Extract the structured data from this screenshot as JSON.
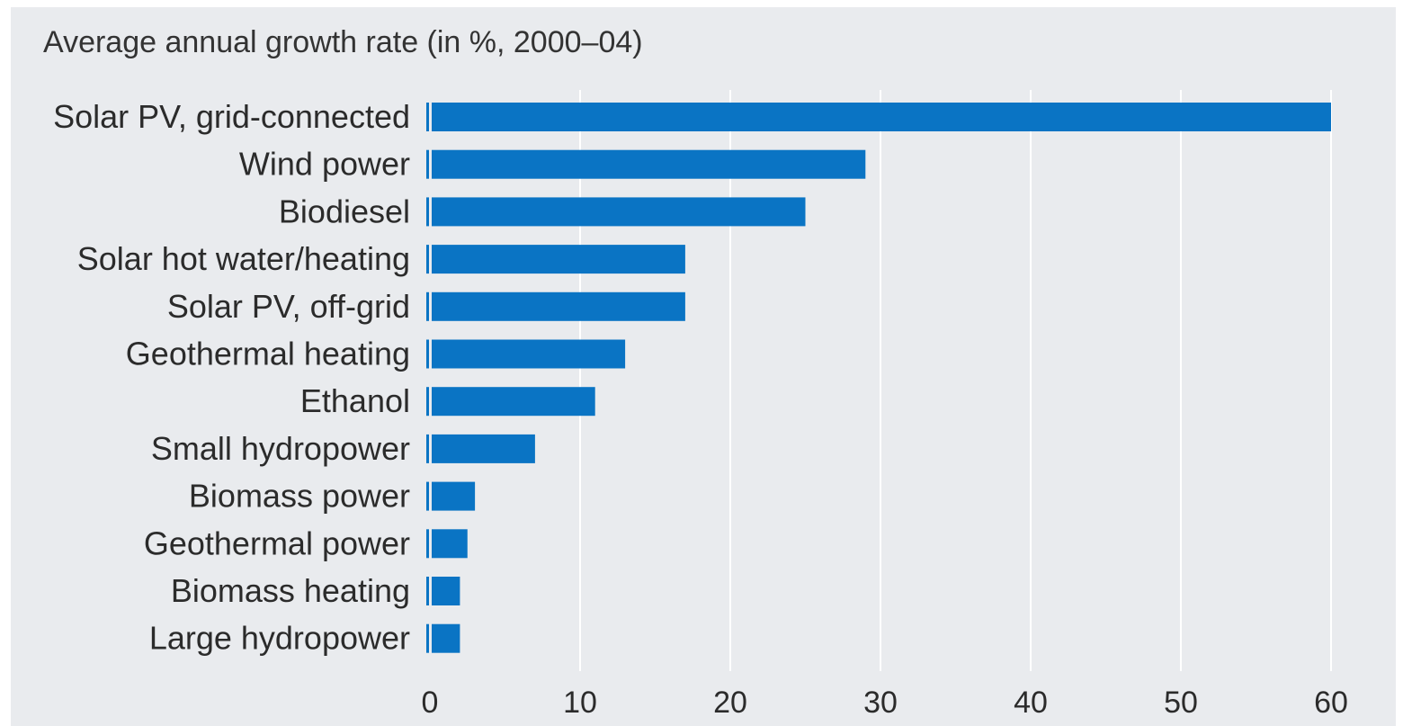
{
  "chart_data": {
    "type": "bar",
    "orientation": "horizontal",
    "title": "Average annual growth rate (in %, 2000–04)",
    "xlabel": "",
    "ylabel": "",
    "categories": [
      "Solar PV, grid-connected",
      "Wind power",
      "Biodiesel",
      "Solar hot water/heating",
      "Solar PV, off-grid",
      "Geothermal heating",
      "Ethanol",
      "Small hydropower",
      "Biomass power",
      "Geothermal power",
      "Biomass heating",
      "Large hydropower"
    ],
    "values": [
      60,
      29,
      25,
      17,
      17,
      13,
      11,
      7,
      3,
      2.5,
      2,
      2
    ],
    "xlim": [
      0,
      60
    ],
    "xticks": [
      0,
      10,
      20,
      30,
      40,
      50,
      60
    ],
    "grid": true,
    "bar_color": "#0a74c4",
    "background_color": "#e9ebee",
    "gridline_color": "#ffffff"
  }
}
